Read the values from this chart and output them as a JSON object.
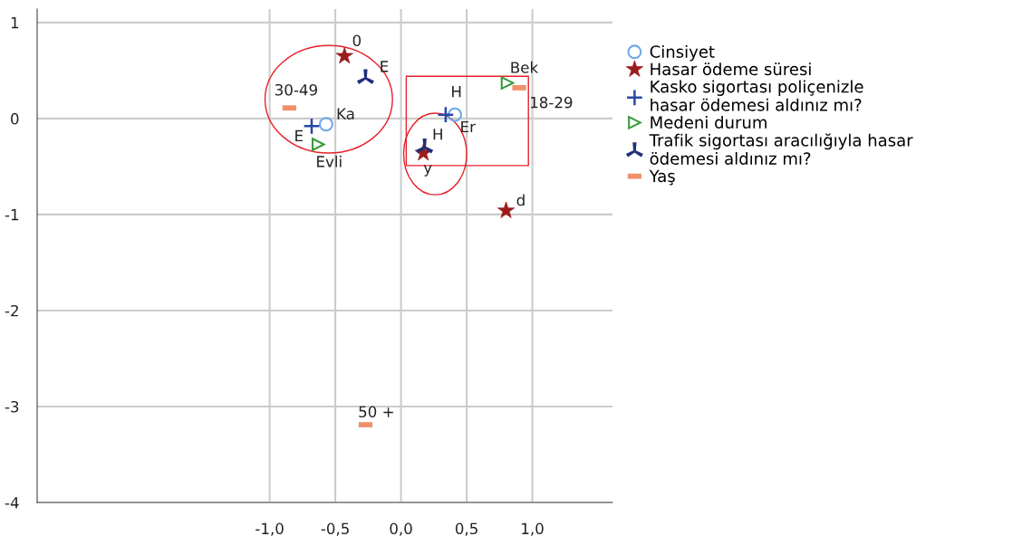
{
  "chart_data": {
    "type": "scatter",
    "xlim": [
      -2.77,
      1.61
    ],
    "ylim": [
      -4,
      1.14
    ],
    "xticks": [
      {
        "value": -1,
        "label": "-1,0"
      },
      {
        "value": -0.5,
        "label": "-0,5"
      },
      {
        "value": 0,
        "label": "0,0"
      },
      {
        "value": 0.5,
        "label": "0,5"
      },
      {
        "value": 1,
        "label": "1,0"
      }
    ],
    "yticks": [
      -4,
      -3,
      -2,
      -1,
      0,
      1
    ],
    "grid": true,
    "legend": "right",
    "series": [
      {
        "name": "Cinsiyet",
        "color": "#6fa8e8",
        "marker": "circle",
        "x": [
          -0.57,
          0.41
        ],
        "values": [
          -0.06,
          0.04
        ]
      },
      {
        "name": "Hasar ödeme süresi",
        "color": "#9b1b1b",
        "marker": "star",
        "x": [
          -0.43,
          0.17,
          0.8
        ],
        "values": [
          0.65,
          -0.36,
          -0.96
        ]
      },
      {
        "name": "Kasko sigortası poliçenizle\nhasar ödemesi aldınız mı?",
        "color": "#2846a8",
        "marker": "cross",
        "x": [
          -0.68,
          0.34
        ],
        "values": [
          -0.08,
          0.04
        ]
      },
      {
        "name": "Medeni durum",
        "color": "#3a9a3a",
        "marker": "triangle",
        "x": [
          -0.63,
          0.81
        ],
        "values": [
          -0.27,
          0.37
        ]
      },
      {
        "name": "Trafik sigortası aracılığıyla hasar\nödemesi aldınız mı?",
        "color": "#1f2f7a",
        "x": [
          -0.27,
          0.18
        ],
        "values": [
          0.42,
          -0.3
        ]
      },
      {
        "name": "Yaş",
        "color": "#f0906a",
        "x": [
          -0.85,
          0.9,
          -0.27
        ],
        "values": [
          0.11,
          0.32,
          -3.19
        ]
      }
    ],
    "annotations": [
      {
        "text": "Ka",
        "x": -0.57,
        "y": -0.06
      },
      {
        "text": "Er",
        "x": 0.41,
        "y": 0.04
      },
      {
        "text": "0",
        "x": -0.43,
        "y": 0.65
      },
      {
        "text": "y",
        "x": 0.17,
        "y": -0.36
      },
      {
        "text": "d",
        "x": 0.8,
        "y": -0.96
      },
      {
        "text": "E",
        "x": -0.68,
        "y": -0.08
      },
      {
        "text": "H",
        "x": 0.34,
        "y": 0.04
      },
      {
        "text": "Evli",
        "x": -0.63,
        "y": -0.27
      },
      {
        "text": "Bek",
        "x": 0.81,
        "y": 0.37
      },
      {
        "text": "E",
        "x": -0.27,
        "y": 0.42
      },
      {
        "text": "H",
        "x": 0.18,
        "y": -0.3
      },
      {
        "text": "30-49",
        "x": -0.85,
        "y": 0.11
      },
      {
        "text": "18-29",
        "x": 0.9,
        "y": 0.32
      },
      {
        "text": "50 +",
        "x": -0.27,
        "y": -3.19
      }
    ]
  }
}
